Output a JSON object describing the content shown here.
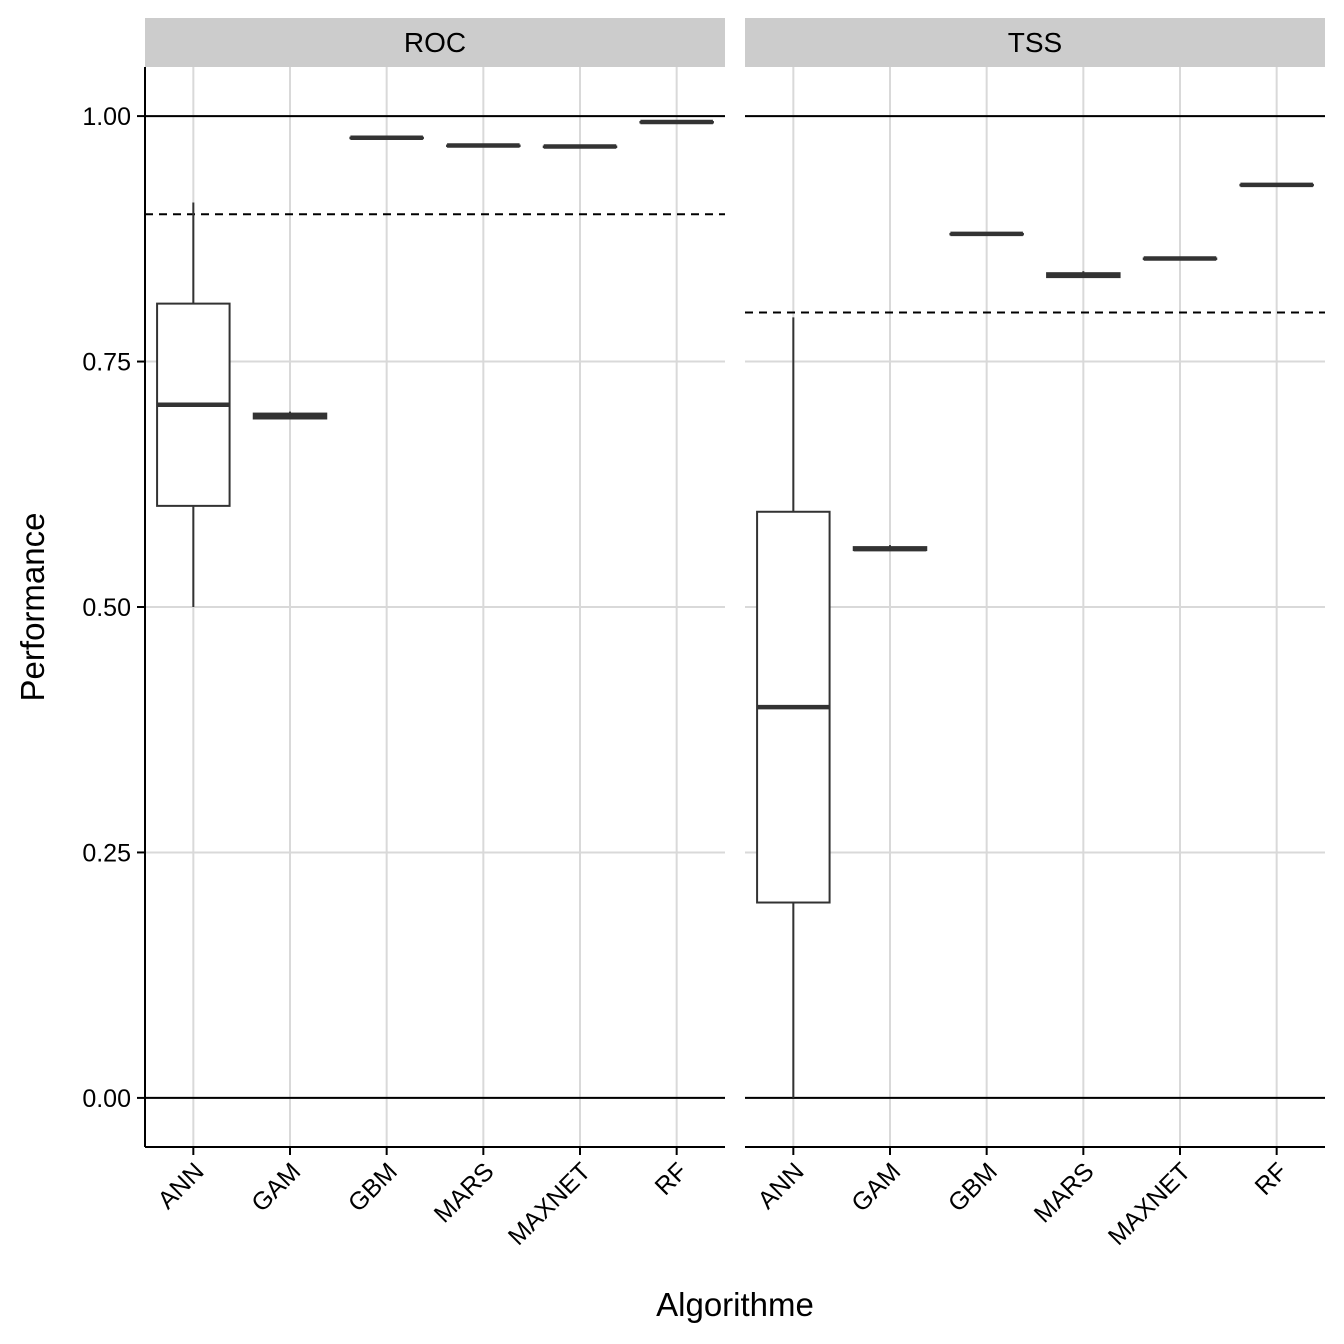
{
  "chart_data": {
    "type": "boxplot",
    "xlabel": "Algorithme",
    "ylabel": "Performance",
    "ylim": [
      -0.05,
      1.05
    ],
    "y_ticks": [
      "0.00",
      "0.25",
      "0.50",
      "0.75",
      "1.00"
    ],
    "y_tick_values": [
      0,
      0.25,
      0.5,
      0.75,
      1.0
    ],
    "categories": [
      "ANN",
      "GAM",
      "GBM",
      "MARS",
      "MAXNET",
      "RF"
    ],
    "grid": true,
    "reference_lines_solid": [
      0,
      1
    ],
    "panels": [
      {
        "title": "ROC",
        "threshold": 0.9,
        "boxes": [
          {
            "category": "ANN",
            "min": 0.5,
            "q1": 0.603,
            "median": 0.706,
            "q3": 0.809,
            "max": 0.912
          },
          {
            "category": "GAM",
            "min": 0.692,
            "q1": 0.692,
            "median": 0.694,
            "q3": 0.697,
            "max": 0.699
          },
          {
            "category": "GBM",
            "min": 0.978,
            "q1": 0.978,
            "median": 0.978,
            "q3": 0.978,
            "max": 0.978
          },
          {
            "category": "MARS",
            "min": 0.97,
            "q1": 0.97,
            "median": 0.97,
            "q3": 0.97,
            "max": 0.97
          },
          {
            "category": "MAXNET",
            "min": 0.969,
            "q1": 0.969,
            "median": 0.969,
            "q3": 0.969,
            "max": 0.969
          },
          {
            "category": "RF",
            "min": 0.994,
            "q1": 0.994,
            "median": 0.994,
            "q3": 0.994,
            "max": 0.994
          }
        ]
      },
      {
        "title": "TSS",
        "threshold": 0.8,
        "boxes": [
          {
            "category": "ANN",
            "min": 0.0,
            "q1": 0.199,
            "median": 0.398,
            "q3": 0.597,
            "max": 0.795
          },
          {
            "category": "GAM",
            "min": 0.558,
            "q1": 0.558,
            "median": 0.559,
            "q3": 0.561,
            "max": 0.563
          },
          {
            "category": "GBM",
            "min": 0.88,
            "q1": 0.88,
            "median": 0.88,
            "q3": 0.88,
            "max": 0.88
          },
          {
            "category": "MARS",
            "min": 0.836,
            "q1": 0.836,
            "median": 0.838,
            "q3": 0.84,
            "max": 0.842
          },
          {
            "category": "MAXNET",
            "min": 0.855,
            "q1": 0.855,
            "median": 0.855,
            "q3": 0.855,
            "max": 0.855
          },
          {
            "category": "RF",
            "min": 0.93,
            "q1": 0.93,
            "median": 0.93,
            "q3": 0.93,
            "max": 0.93
          }
        ]
      }
    ]
  }
}
